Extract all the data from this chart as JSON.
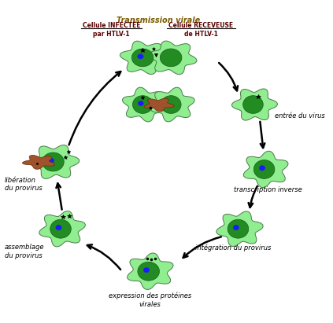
{
  "title": "Transmission virale",
  "subtitle_left": "Cellule INFECTÉE\npar HTLV-1",
  "subtitle_right": "Cellule RECEVEUSE\nde HTLV-1",
  "background_color": "#ffffff",
  "cell_outer_color": "#90ee90",
  "cell_inner_color": "#228B22",
  "cell_nucleus_color": "#1a1aff",
  "brown_color": "#A0522D",
  "labels": {
    "entree": "entrée du virus",
    "transcription": "transcription inverse",
    "integration": "intégration du provirus",
    "expression": "expression des protéines\nvirales",
    "assemblage": "assemblage\ndu provirus",
    "liberation": "libération\ndu provirus"
  }
}
